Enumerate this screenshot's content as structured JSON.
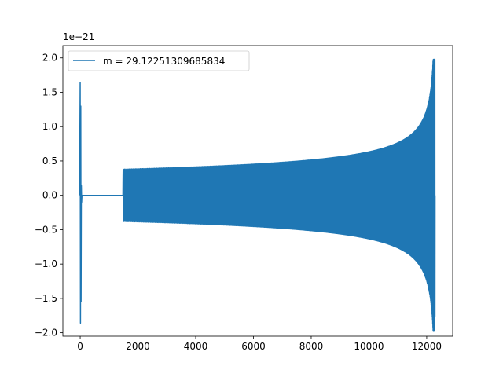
{
  "chart_data": {
    "type": "line",
    "title": "",
    "xlabel": "",
    "ylabel": "",
    "xlim": [
      -600,
      12900
    ],
    "ylim": [
      -2.05,
      2.18
    ],
    "y_scale_label": "1e−21",
    "x_ticks": [
      0,
      2000,
      4000,
      6000,
      8000,
      10000,
      12000
    ],
    "x_tick_labels": [
      "0",
      "2000",
      "4000",
      "6000",
      "8000",
      "10000",
      "12000"
    ],
    "y_ticks": [
      -2.0,
      -1.5,
      -1.0,
      -0.5,
      0.0,
      0.5,
      1.0,
      1.5,
      2.0
    ],
    "y_tick_labels": [
      "−2.0",
      "−1.5",
      "−1.0",
      "−0.5",
      "0.0",
      "0.5",
      "1.0",
      "1.5",
      "2.0"
    ],
    "grid": false,
    "legend_position": "top-left",
    "series": [
      {
        "name": "m = 29.12251309685834",
        "color": "#1f77b4",
        "features": {
          "initial_burst": {
            "x_start": -20,
            "x_end": 60,
            "y_max": 1.64,
            "y_min": -1.86
          },
          "flat_zero": {
            "x_start": 60,
            "x_end": 1480,
            "y": 0.0
          },
          "chirp": {
            "x_start": 1480,
            "x_end": 12280,
            "start_amplitude": 0.38,
            "peak_amplitude": 1.98,
            "peak_min": -1.76,
            "end_x": 12290
          }
        }
      }
    ]
  }
}
